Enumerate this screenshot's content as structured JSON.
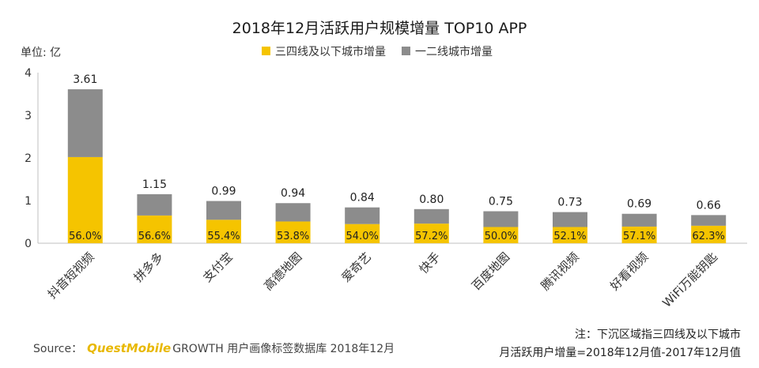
{
  "chart_data": {
    "type": "bar",
    "stacked": true,
    "title": "2018年12月活跃用户规模增量 TOP10 APP",
    "ylabel": "单位: 亿",
    "xlabel": "",
    "ylim": [
      0,
      4
    ],
    "yticks": [
      "0",
      "1",
      "2",
      "3",
      "4"
    ],
    "grid": false,
    "legend_position": "top-center",
    "categories": [
      "抖音短视频",
      "拼多多",
      "支付宝",
      "高德地图",
      "爱奇艺",
      "快手",
      "百度地图",
      "腾讯视频",
      "好看视频",
      "WiFi万能钥匙"
    ],
    "totals": [
      3.61,
      1.15,
      0.99,
      0.94,
      0.84,
      0.8,
      0.75,
      0.73,
      0.69,
      0.66
    ],
    "total_labels": [
      "3.61",
      "1.15",
      "0.99",
      "0.94",
      "0.84",
      "0.80",
      "0.75",
      "0.73",
      "0.69",
      "0.66"
    ],
    "series": [
      {
        "name": "三四线及以下城市增量",
        "color": "#f5c400",
        "values": [
          2.02,
          0.65,
          0.55,
          0.51,
          0.45,
          0.46,
          0.38,
          0.38,
          0.39,
          0.41
        ],
        "percent_labels": [
          "56.0%",
          "56.6%",
          "55.4%",
          "53.8%",
          "54.0%",
          "57.2%",
          "50.0%",
          "52.1%",
          "57.1%",
          "62.3%"
        ]
      },
      {
        "name": "一二线城市增量",
        "color": "#8c8c8c",
        "values": [
          1.59,
          0.5,
          0.44,
          0.43,
          0.39,
          0.34,
          0.37,
          0.35,
          0.3,
          0.25
        ]
      }
    ]
  },
  "colors": {
    "axis": "#bfbfbf",
    "brand": "#e8b800"
  },
  "footer": {
    "source_prefix": "Source：",
    "source_brand": "QuestMobile",
    "source_rest": "GROWTH 用户画像标签数据库 2018年12月",
    "note_line1": "注：下沉区域指三四线及以下城市",
    "note_line2": "月活跃用户增量=2018年12月值-2017年12月值"
  }
}
